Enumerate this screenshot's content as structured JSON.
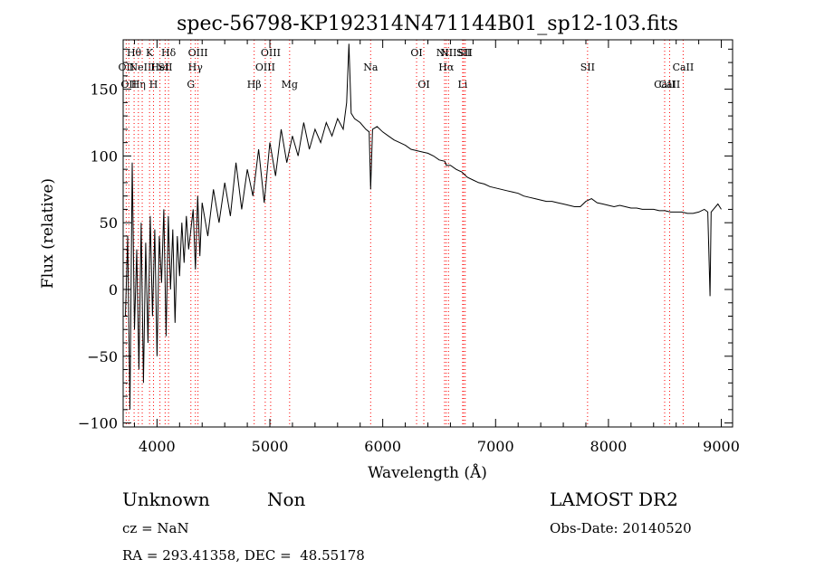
{
  "chart_data": {
    "type": "line",
    "title": "spec-56798-KP192314N471144B01_sp12-103.fits",
    "xlabel": "Wavelength (Å)",
    "ylabel": "Flux (relative)",
    "xlim": [
      3700,
      9100
    ],
    "ylim": [
      -103,
      187
    ],
    "x_ticks": [
      4000,
      5000,
      6000,
      7000,
      8000,
      9000
    ],
    "y_ticks": [
      -100,
      -50,
      0,
      50,
      100,
      150
    ],
    "grid": false,
    "line_color": "#000000",
    "marker_color": "#ff0000",
    "series": [
      {
        "x": [
          3720,
          3740,
          3760,
          3780,
          3800,
          3820,
          3840,
          3860,
          3880,
          3900,
          3920,
          3940,
          3960,
          3980,
          4000,
          4020,
          4040,
          4060,
          4080,
          4100,
          4120,
          4140,
          4160,
          4180,
          4200,
          4220,
          4240,
          4260,
          4280,
          4300,
          4320,
          4340,
          4360,
          4380,
          4400,
          4450,
          4500,
          4550,
          4600,
          4650,
          4700,
          4750,
          4800,
          4850,
          4900,
          4950,
          5000,
          5050,
          5100,
          5150,
          5200,
          5250,
          5300,
          5350,
          5400,
          5450,
          5500,
          5550,
          5600,
          5650,
          5680,
          5700,
          5720,
          5750,
          5800,
          5850,
          5880,
          5893,
          5910,
          5950,
          6000,
          6050,
          6100,
          6150,
          6200,
          6250,
          6300,
          6350,
          6400,
          6450,
          6500,
          6550,
          6563,
          6600,
          6650,
          6700,
          6750,
          6800,
          6850,
          6900,
          6950,
          7000,
          7050,
          7100,
          7150,
          7200,
          7250,
          7300,
          7350,
          7400,
          7450,
          7500,
          7550,
          7600,
          7650,
          7700,
          7750,
          7800,
          7850,
          7900,
          7950,
          8000,
          8050,
          8100,
          8150,
          8200,
          8250,
          8300,
          8350,
          8400,
          8450,
          8500,
          8550,
          8600,
          8650,
          8700,
          8750,
          8800,
          8850,
          8880,
          8900,
          8910,
          8930,
          8950,
          8970,
          9000
        ],
        "y": [
          -20,
          40,
          -90,
          95,
          -30,
          30,
          -60,
          50,
          -70,
          35,
          -40,
          55,
          -20,
          45,
          -50,
          40,
          5,
          60,
          -35,
          55,
          0,
          45,
          -25,
          40,
          10,
          50,
          20,
          55,
          30,
          45,
          60,
          15,
          70,
          25,
          65,
          40,
          75,
          50,
          80,
          55,
          95,
          60,
          90,
          70,
          105,
          65,
          110,
          85,
          120,
          95,
          115,
          100,
          125,
          105,
          120,
          110,
          125,
          115,
          128,
          120,
          140,
          184,
          132,
          128,
          125,
          120,
          118,
          75,
          120,
          122,
          118,
          115,
          112,
          110,
          108,
          105,
          104,
          103,
          102,
          100,
          97,
          96,
          93,
          93,
          90,
          88,
          84,
          82,
          80,
          79,
          77,
          76,
          75,
          74,
          73,
          72,
          70,
          69,
          68,
          67,
          66,
          66,
          65,
          64,
          63,
          62,
          62,
          66,
          68,
          65,
          64,
          63,
          62,
          63,
          62,
          61,
          61,
          60,
          60,
          60,
          59,
          59,
          58,
          58,
          58,
          57,
          57,
          58,
          60,
          58,
          -5,
          58,
          60,
          62,
          64,
          60
        ]
      }
    ],
    "line_markers": [
      {
        "wave": 3727,
        "label": "OII",
        "row": 2
      },
      {
        "wave": 3750,
        "label": "OII",
        "row": 3
      },
      {
        "wave": 3797,
        "label": "Hθ",
        "row": 1
      },
      {
        "wave": 3835,
        "label": "Hη",
        "row": 3
      },
      {
        "wave": 3869,
        "label": "NeIII",
        "row": 2
      },
      {
        "wave": 3934,
        "label": "K",
        "row": 1
      },
      {
        "wave": 3969,
        "label": "H",
        "row": 3
      },
      {
        "wave": 4026,
        "label": "HeI",
        "row": 2
      },
      {
        "wave": 4072,
        "label": "SII",
        "row": 2
      },
      {
        "wave": 4102,
        "label": "Hδ",
        "row": 1
      },
      {
        "wave": 4300,
        "label": "G",
        "row": 3
      },
      {
        "wave": 4340,
        "label": "Hγ",
        "row": 2
      },
      {
        "wave": 4363,
        "label": "OIII",
        "row": 1
      },
      {
        "wave": 4861,
        "label": "Hβ",
        "row": 3
      },
      {
        "wave": 4959,
        "label": "OIII",
        "row": 2
      },
      {
        "wave": 5007,
        "label": "OIII",
        "row": 1
      },
      {
        "wave": 5175,
        "label": "Mg",
        "row": 3
      },
      {
        "wave": 5893,
        "label": "Na",
        "row": 2
      },
      {
        "wave": 6300,
        "label": "OI",
        "row": 1
      },
      {
        "wave": 6364,
        "label": "OI",
        "row": 3
      },
      {
        "wave": 6548,
        "label": "NII",
        "row": 1
      },
      {
        "wave": 6563,
        "label": "Hα",
        "row": 2
      },
      {
        "wave": 6583,
        "label": "NII",
        "row": 1
      },
      {
        "wave": 6708,
        "label": "Li",
        "row": 3
      },
      {
        "wave": 6717,
        "label": "SII",
        "row": 1
      },
      {
        "wave": 6731,
        "label": "SII",
        "row": 1
      },
      {
        "wave": 7815,
        "label": "SII",
        "row": 2
      },
      {
        "wave": 8498,
        "label": "CaII",
        "row": 3
      },
      {
        "wave": 8542,
        "label": "CaII",
        "row": 3
      },
      {
        "wave": 8662,
        "label": "CaII",
        "row": 2
      }
    ]
  },
  "footer": {
    "classification": "Unknown",
    "subclass": "Non",
    "survey": "LAMOST DR2",
    "redshift": "cz = NaN",
    "obs_date": "Obs-Date: 20140520",
    "coords": "RA = 293.41358, DEC =  48.55178"
  }
}
